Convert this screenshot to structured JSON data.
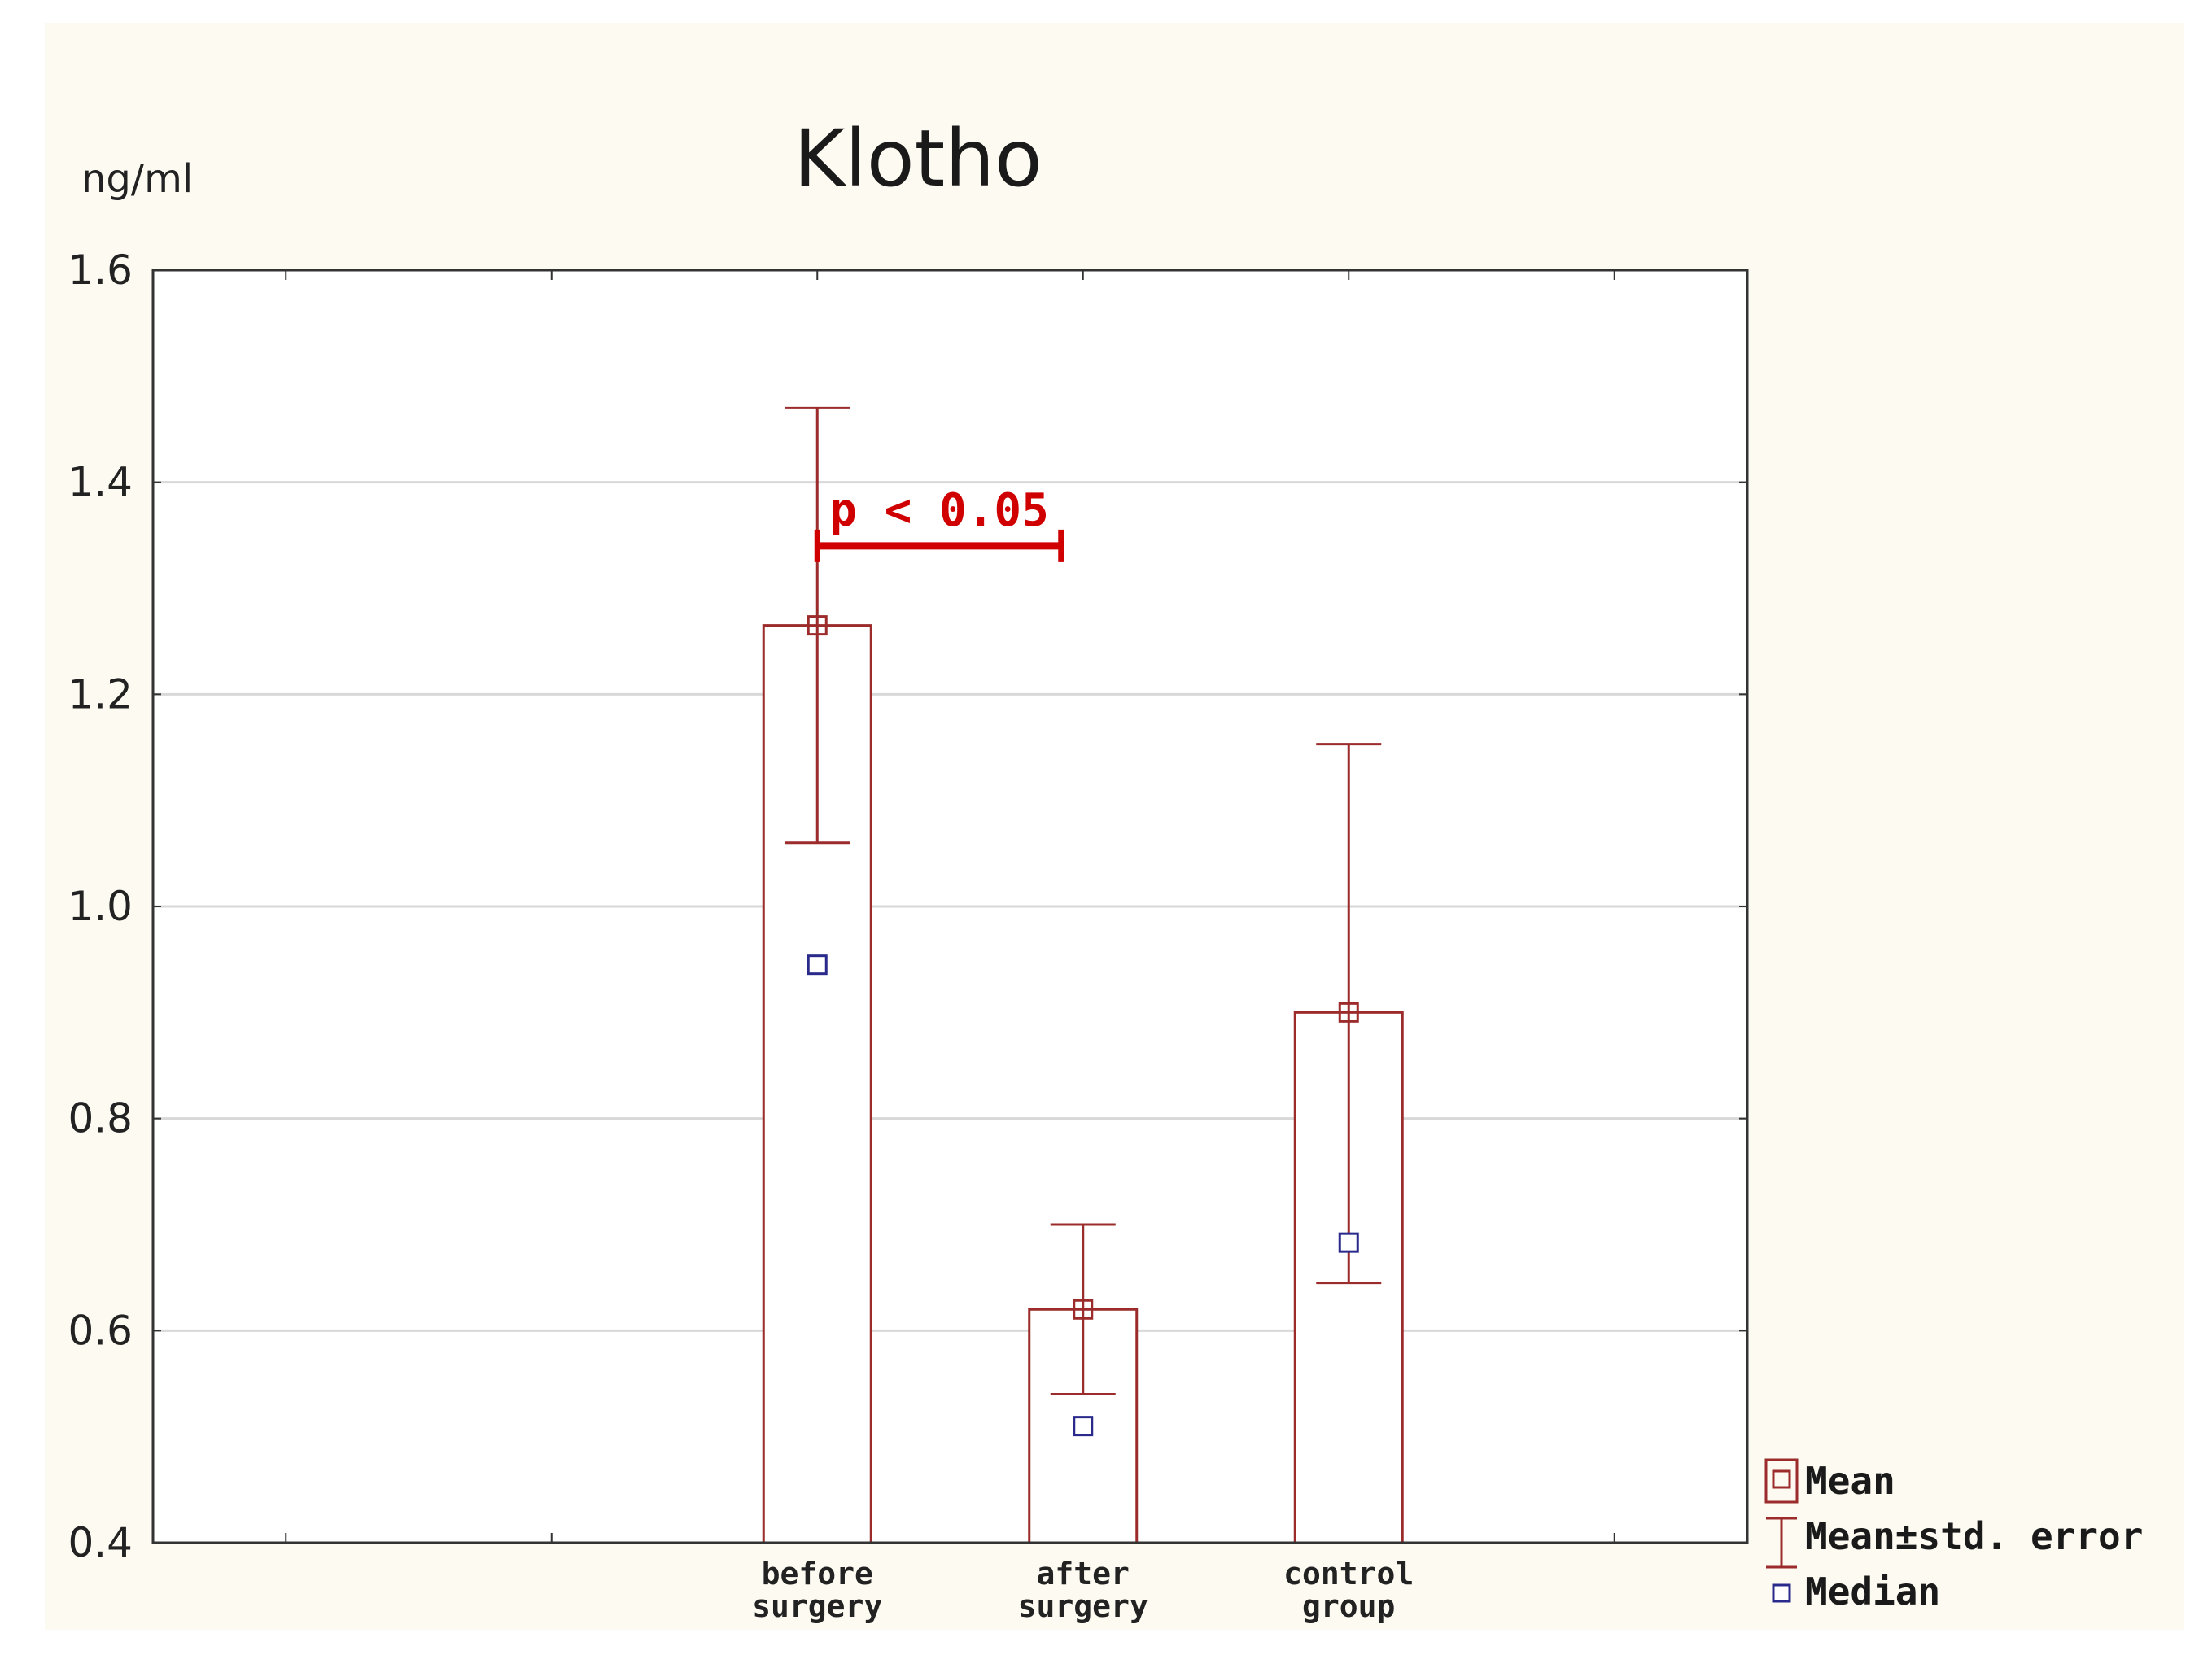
{
  "chart_data": {
    "type": "bar",
    "title": "Klotho",
    "ylabel": "ng/ml",
    "ylim": [
      0.4,
      1.6
    ],
    "yticks": [
      "1.6",
      "1.4",
      "1.2",
      "1.0",
      "0.8",
      "0.6",
      "0.4"
    ],
    "grid": true,
    "categories": [
      [
        "before",
        "surgery"
      ],
      [
        "after",
        "surgery"
      ],
      [
        "control",
        "group"
      ]
    ],
    "series": [
      {
        "name": "Mean",
        "values": [
          1.265,
          0.62,
          0.9
        ]
      },
      {
        "name": "Mean±std. error",
        "low": [
          1.06,
          0.54,
          0.645
        ],
        "high": [
          1.47,
          0.7,
          1.153
        ]
      },
      {
        "name": "Median",
        "values": [
          0.945,
          0.51,
          0.683
        ]
      }
    ],
    "annotation": {
      "text": "p < 0.05",
      "from_category": 0,
      "to_category": 1,
      "y": 1.34,
      "color": "#d00000"
    },
    "legend_position": "bottom-right",
    "colors": {
      "mean": "#9c2b2b",
      "median": "#2a2a8c",
      "grid": "#d8d8d8",
      "annotation": "#d00000"
    }
  }
}
